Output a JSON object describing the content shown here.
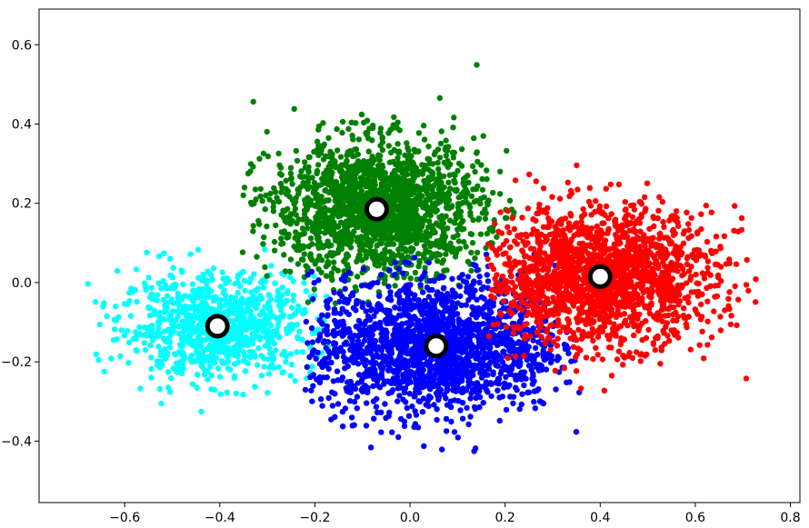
{
  "chart_data": {
    "type": "scatter",
    "title": "",
    "xlabel": "",
    "ylabel": "",
    "xlim": [
      -0.78,
      0.82
    ],
    "ylim": [
      -0.555,
      0.69
    ],
    "grid": false,
    "legend": "none",
    "x_ticks": [
      {
        "value": -0.6,
        "label": "−0.6"
      },
      {
        "value": -0.4,
        "label": "−0.4"
      },
      {
        "value": -0.2,
        "label": "−0.2"
      },
      {
        "value": 0.0,
        "label": "0.0"
      },
      {
        "value": 0.2,
        "label": "0.2"
      },
      {
        "value": 0.4,
        "label": "0.4"
      },
      {
        "value": 0.6,
        "label": "0.6"
      },
      {
        "value": 0.8,
        "label": "0.8"
      }
    ],
    "y_ticks": [
      {
        "value": -0.4,
        "label": "−0.4"
      },
      {
        "value": -0.2,
        "label": "−0.2"
      },
      {
        "value": 0.0,
        "label": "0.0"
      },
      {
        "value": 0.2,
        "label": "0.2"
      },
      {
        "value": 0.4,
        "label": "0.4"
      },
      {
        "value": 0.6,
        "label": "0.6"
      }
    ],
    "series": [
      {
        "color": "#00ffff",
        "center": [
          -0.405,
          -0.11
        ],
        "spread": [
          0.1,
          0.065
        ],
        "count": 900,
        "x_range": [
          -0.7,
          -0.17
        ],
        "y_range": [
          -0.4,
          0.33
        ]
      },
      {
        "color": "#008000",
        "center": [
          -0.07,
          0.185
        ],
        "spread": [
          0.11,
          0.085
        ],
        "count": 1800,
        "x_range": [
          -0.36,
          0.22
        ],
        "y_range": [
          -0.06,
          0.64
        ]
      },
      {
        "color": "#0000ff",
        "center": [
          0.055,
          -0.16
        ],
        "spread": [
          0.13,
          0.085
        ],
        "count": 1800,
        "x_range": [
          -0.22,
          0.36
        ],
        "y_range": [
          -0.49,
          0.1
        ]
      },
      {
        "color": "#ff0000",
        "center": [
          0.4,
          0.015
        ],
        "spread": [
          0.12,
          0.085
        ],
        "count": 1800,
        "x_range": [
          0.16,
          0.75
        ],
        "y_range": [
          -0.3,
          0.5
        ]
      }
    ],
    "centroids": [
      {
        "x": -0.405,
        "y": -0.11
      },
      {
        "x": -0.07,
        "y": 0.185
      },
      {
        "x": 0.055,
        "y": -0.16
      },
      {
        "x": 0.4,
        "y": 0.015
      }
    ]
  }
}
